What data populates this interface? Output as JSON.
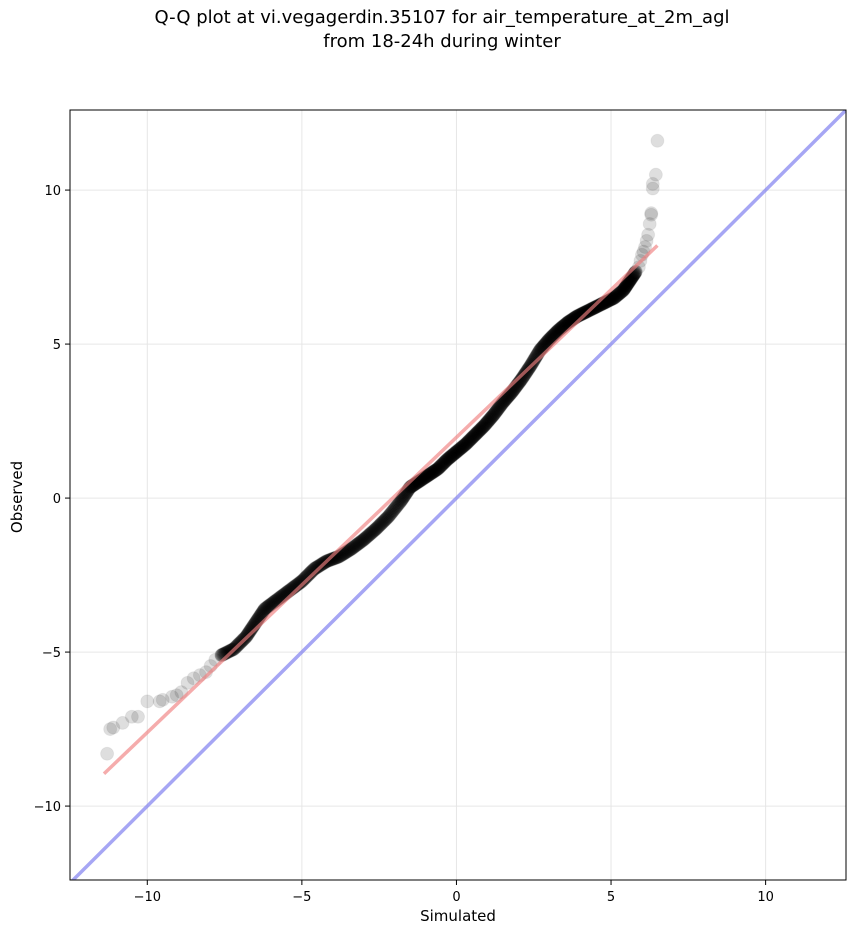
{
  "chart_data": {
    "type": "scatter",
    "title_line1": "Q-Q plot at vi.vegagerdin.35107 for air_temperature_at_2m_agl",
    "title_line2": "from 18-24h during winter",
    "xlabel": "Simulated",
    "ylabel": "Observed",
    "xlim": [
      -12.5,
      12.6
    ],
    "ylim": [
      -12.4,
      12.6
    ],
    "xticks": [
      -10,
      -5,
      0,
      5,
      10
    ],
    "yticks": [
      -10,
      -5,
      0,
      5,
      10
    ],
    "xtick_labels": [
      "−10",
      "−5",
      "0",
      "5",
      "10"
    ],
    "ytick_labels": [
      "−10",
      "−5",
      "0",
      "5",
      "10"
    ],
    "grid": true,
    "colors": {
      "points": "#000000",
      "fit_line": "#f08080",
      "identity_line": "#8080f0",
      "grid": "#e6e6e6"
    },
    "identity_line": {
      "label": "y = x"
    },
    "fit_line": {
      "x": [
        -11.4,
        6.5
      ],
      "y": [
        -8.95,
        8.2
      ]
    },
    "points_outer": [
      [
        -11.3,
        -8.3
      ],
      [
        -11.2,
        -7.5
      ],
      [
        -11.1,
        -7.45
      ],
      [
        -10.8,
        -7.3
      ],
      [
        -10.5,
        -7.1
      ],
      [
        -10.3,
        -7.1
      ],
      [
        -10,
        -6.6
      ],
      [
        -9.6,
        -6.6
      ],
      [
        -9.5,
        -6.55
      ],
      [
        -9.2,
        -6.45
      ],
      [
        -9.05,
        -6.4
      ],
      [
        -8.9,
        -6.3
      ],
      [
        -8.7,
        -6.0
      ],
      [
        -8.5,
        -5.85
      ],
      [
        -8.3,
        -5.75
      ],
      [
        -8.1,
        -5.65
      ],
      [
        -7.95,
        -5.45
      ],
      [
        -7.8,
        -5.25
      ],
      [
        -7.6,
        -5.1
      ],
      [
        5.9,
        7.5
      ],
      [
        5.95,
        7.7
      ],
      [
        6.0,
        7.9
      ],
      [
        6.05,
        8.0
      ],
      [
        6.1,
        8.15
      ],
      [
        6.15,
        8.35
      ],
      [
        6.2,
        8.55
      ],
      [
        6.25,
        8.9
      ],
      [
        6.3,
        9.2
      ],
      [
        6.3,
        9.25
      ],
      [
        6.35,
        10.05
      ],
      [
        6.35,
        10.2
      ],
      [
        6.45,
        10.5
      ],
      [
        6.5,
        11.6
      ]
    ],
    "points_core": [
      [
        -7.6,
        -5.1
      ],
      [
        -7.2,
        -4.9
      ],
      [
        -6.8,
        -4.5
      ],
      [
        -6.5,
        -4.05
      ],
      [
        -6.2,
        -3.6
      ],
      [
        -5.8,
        -3.3
      ],
      [
        -5.4,
        -3.0
      ],
      [
        -5.0,
        -2.7
      ],
      [
        -4.6,
        -2.3
      ],
      [
        -4.2,
        -2.05
      ],
      [
        -3.8,
        -1.9
      ],
      [
        -3.4,
        -1.65
      ],
      [
        -3.0,
        -1.35
      ],
      [
        -2.6,
        -1.0
      ],
      [
        -2.2,
        -0.6
      ],
      [
        -1.8,
        -0.1
      ],
      [
        -1.5,
        0.35
      ],
      [
        -1.2,
        0.55
      ],
      [
        -0.9,
        0.75
      ],
      [
        -0.6,
        0.95
      ],
      [
        -0.3,
        1.25
      ],
      [
        0,
        1.5
      ],
      [
        0.3,
        1.75
      ],
      [
        0.6,
        2.05
      ],
      [
        0.9,
        2.35
      ],
      [
        1.2,
        2.7
      ],
      [
        1.5,
        3.1
      ],
      [
        1.8,
        3.45
      ],
      [
        2.1,
        3.85
      ],
      [
        2.4,
        4.3
      ],
      [
        2.7,
        4.8
      ],
      [
        3.0,
        5.15
      ],
      [
        3.3,
        5.45
      ],
      [
        3.6,
        5.7
      ],
      [
        3.9,
        5.9
      ],
      [
        4.2,
        6.05
      ],
      [
        4.5,
        6.2
      ],
      [
        4.8,
        6.35
      ],
      [
        5.1,
        6.5
      ],
      [
        5.4,
        6.75
      ],
      [
        5.6,
        7.05
      ],
      [
        5.8,
        7.35
      ]
    ]
  }
}
